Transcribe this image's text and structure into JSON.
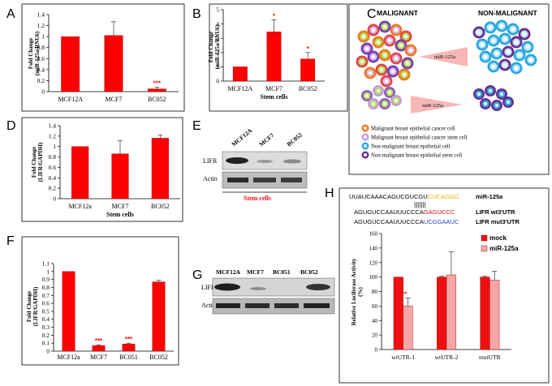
{
  "panel_letters": {
    "A": "A",
    "B": "B",
    "C": "C",
    "D": "D",
    "E": "E",
    "F": "F",
    "G": "G",
    "H": "H"
  },
  "chart_data": [
    {
      "panel": "A",
      "type": "bar",
      "ylabel": "Fold Change (miR-125a/RNU6)",
      "categories": [
        "MCF12A",
        "MCF7",
        "BC052"
      ],
      "values": [
        1.0,
        1.02,
        0.05
      ],
      "errors": [
        0,
        0.25,
        0.03
      ],
      "yticks": [
        "0",
        "0.2",
        "0.4",
        "0.6",
        "0.8",
        "1",
        "1.2",
        "1.4"
      ],
      "ylim": [
        0,
        1.4
      ],
      "significance": {
        "BC052": "***"
      },
      "bar_color": "#ff0000"
    },
    {
      "panel": "B",
      "type": "bar",
      "ylabel": "Fold Change (miR-125a/RNU6)",
      "categories": [
        "MCF12A",
        "MCF7",
        "BC052"
      ],
      "values": [
        1.0,
        3.45,
        1.55
      ],
      "errors": [
        0,
        0.85,
        0.45
      ],
      "yticks": [
        "0",
        "1",
        "2",
        "3",
        "4",
        "5"
      ],
      "ylim": [
        0,
        5
      ],
      "significance": {
        "MCF7": "*",
        "BC052": "*"
      },
      "xnote": "Stem cells",
      "bar_color": "#ff0000"
    },
    {
      "panel": "D",
      "type": "bar",
      "ylabel": "Fold Change (LIFR/GAPDH)",
      "categories": [
        "MCF12a",
        "MCF7",
        "BC052"
      ],
      "values": [
        1.0,
        0.86,
        1.16
      ],
      "errors": [
        0,
        0.25,
        0.06
      ],
      "yticks": [
        "0",
        "0.2",
        "0.4",
        "0.6",
        "0.8",
        "1",
        "1.2",
        "1.4"
      ],
      "ylim": [
        0,
        1.4
      ],
      "xnote": "Stem cells",
      "bar_color": "#ff0000"
    },
    {
      "panel": "F",
      "type": "bar",
      "ylabel": "Fold Change (LIFR/GAPDH)",
      "categories": [
        "MCF12a",
        "MCF7",
        "BC051",
        "BC052"
      ],
      "values": [
        1.0,
        0.07,
        0.09,
        0.87
      ],
      "errors": [
        0,
        0.01,
        0.01,
        0.02
      ],
      "yticks": [
        "0",
        "0.1",
        "0.2",
        "0.3",
        "0.4",
        "0.5",
        "0.6",
        "0.7",
        "0.8",
        "0.9",
        "1",
        "1.1"
      ],
      "ylim": [
        0,
        1.1
      ],
      "significance": {
        "MCF7": "***",
        "BC051": "***"
      },
      "bar_color": "#ff0000"
    },
    {
      "panel": "H",
      "type": "bar",
      "ylabel": "Relative Luciferase Activity (%)",
      "categories": [
        "wtUTR-1",
        "wtUTR-2",
        "mutUTR"
      ],
      "series": [
        {
          "name": "mock",
          "values": [
            100,
            100,
            100
          ],
          "errors": [
            0,
            1,
            1
          ],
          "color": "#ee1111"
        },
        {
          "name": "miR-125a",
          "values": [
            60,
            103,
            96
          ],
          "errors": [
            11,
            32,
            12
          ],
          "color": "#f4a6a6"
        }
      ],
      "yticks": [
        "0",
        "20",
        "40",
        "60",
        "80",
        "100",
        "120",
        "140",
        "160"
      ],
      "ylim": [
        0,
        160
      ],
      "significance": {
        "wtUTR-1": "***"
      },
      "legend": "top-right"
    }
  ],
  "panel_c": {
    "malignant": "MALIGNANT",
    "non_malignant": "NON-MALIGNANT",
    "arrow_label": "miR-125a",
    "legend": [
      {
        "label": "Malignant breast epithelial cancer cell",
        "color": "#f07a20"
      },
      {
        "label": "Malignant breast epithelial cancer stem cell",
        "color": "#c89ae0"
      },
      {
        "label": "Non-malignant breast epithelial cell",
        "color": "#2aa8e0"
      },
      {
        "label": "Non-malignant breast epithelial stem cell",
        "color": "#6b2f8f"
      }
    ]
  },
  "panel_e": {
    "lanes": [
      "MCF12A",
      "MCF7",
      "BC052"
    ],
    "rows": [
      "LIFR",
      "Actin"
    ],
    "note": "Stem cells"
  },
  "panel_g": {
    "lanes": [
      "MCF12A",
      "MCF7",
      "BC051",
      "BC052"
    ],
    "rows": [
      "LIFR",
      "Actin"
    ]
  },
  "panel_h_seq": {
    "mir_seq_black": "UUAUCAAACAGUCGUCGU",
    "mir_seq_color": "CUCAGGG",
    "mir_name": "miR-125a",
    "pairing": "|||||||",
    "wt_seq_black": "AGUGUCCAAUUUCCCA",
    "wt_seq_color": "GAGUCCC",
    "wt_name": "LIFR  wt3'UTR",
    "mut_seq_black": "AGUGUCCAAUUUCCCA",
    "mut_seq_color": "UCGGAAUC",
    "mut_name": "LIFR  mut3'UTR"
  }
}
